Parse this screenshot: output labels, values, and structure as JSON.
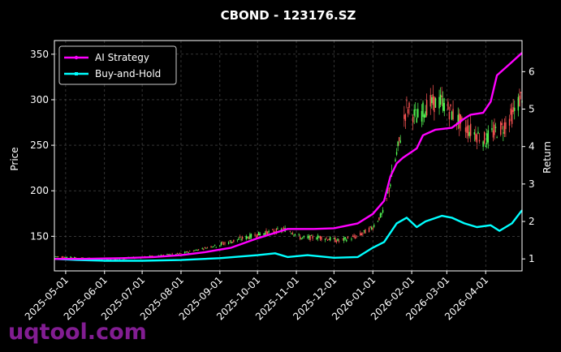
{
  "chart_data": {
    "type": "line",
    "title": "CBOND - 123176.SZ",
    "ylabel_left": "Price",
    "ylabel_right": "Return",
    "ylim_left": [
      112,
      365
    ],
    "ylim_right": [
      0.68,
      6.83
    ],
    "yticks_left": [
      150,
      200,
      250,
      300,
      350
    ],
    "yticks_right": [
      1,
      2,
      3,
      4,
      5,
      6
    ],
    "xlim": [
      "2025-04-22",
      "2026-04-30"
    ],
    "xticks": [
      "2025-05-01",
      "2025-06-01",
      "2025-07-01",
      "2025-08-01",
      "2025-09-01",
      "2025-10-01",
      "2025-11-01",
      "2025-12-01",
      "2026-01-01",
      "2026-02-01",
      "2026-03-01",
      "2026-04-01"
    ],
    "grid": true,
    "legend_position": "top-left",
    "series": [
      {
        "name": "AI Strategy",
        "color": "#ff00ff",
        "axis": "right",
        "points": [
          [
            "2025-04-22",
            1.0
          ],
          [
            "2025-05-15",
            1.0
          ],
          [
            "2025-06-15",
            1.02
          ],
          [
            "2025-07-10",
            1.05
          ],
          [
            "2025-08-01",
            1.1
          ],
          [
            "2025-08-20",
            1.18
          ],
          [
            "2025-09-10",
            1.3
          ],
          [
            "2025-10-01",
            1.55
          ],
          [
            "2025-10-25",
            1.8
          ],
          [
            "2025-11-15",
            1.8
          ],
          [
            "2025-12-01",
            1.82
          ],
          [
            "2025-12-20",
            1.95
          ],
          [
            "2026-01-01",
            2.2
          ],
          [
            "2026-01-10",
            2.55
          ],
          [
            "2026-01-15",
            3.2
          ],
          [
            "2026-01-20",
            3.55
          ],
          [
            "2026-01-25",
            3.7
          ],
          [
            "2026-02-05",
            3.95
          ],
          [
            "2026-02-10",
            4.3
          ],
          [
            "2026-02-20",
            4.45
          ],
          [
            "2026-03-05",
            4.5
          ],
          [
            "2026-03-15",
            4.75
          ],
          [
            "2026-03-20",
            4.85
          ],
          [
            "2026-03-30",
            4.9
          ],
          [
            "2026-04-05",
            5.2
          ],
          [
            "2026-04-10",
            5.9
          ],
          [
            "2026-04-20",
            6.2
          ],
          [
            "2026-04-30",
            6.5
          ]
        ]
      },
      {
        "name": "Buy-and-Hold",
        "color": "#00ffff",
        "axis": "right",
        "points": [
          [
            "2025-04-22",
            1.0
          ],
          [
            "2025-05-10",
            0.97
          ],
          [
            "2025-06-01",
            0.95
          ],
          [
            "2025-07-01",
            0.95
          ],
          [
            "2025-08-01",
            0.97
          ],
          [
            "2025-09-01",
            1.02
          ],
          [
            "2025-10-01",
            1.1
          ],
          [
            "2025-10-15",
            1.15
          ],
          [
            "2025-10-25",
            1.05
          ],
          [
            "2025-11-10",
            1.1
          ],
          [
            "2025-12-01",
            1.03
          ],
          [
            "2025-12-20",
            1.05
          ],
          [
            "2026-01-01",
            1.3
          ],
          [
            "2026-01-10",
            1.45
          ],
          [
            "2026-01-20",
            1.95
          ],
          [
            "2026-01-28",
            2.1
          ],
          [
            "2026-02-05",
            1.85
          ],
          [
            "2026-02-12",
            2.0
          ],
          [
            "2026-02-25",
            2.15
          ],
          [
            "2026-03-05",
            2.1
          ],
          [
            "2026-03-15",
            1.95
          ],
          [
            "2026-03-25",
            1.85
          ],
          [
            "2026-04-05",
            1.9
          ],
          [
            "2026-04-12",
            1.75
          ],
          [
            "2026-04-22",
            1.95
          ],
          [
            "2026-04-30",
            2.3
          ]
        ]
      },
      {
        "name": "Price candles",
        "type": "candlestick",
        "axis": "left",
        "up_color": "#55ff55",
        "down_color": "#ff5555",
        "close_path": [
          [
            "2025-04-22",
            128
          ],
          [
            "2025-06-01",
            124
          ],
          [
            "2025-07-01",
            127
          ],
          [
            "2025-08-01",
            131
          ],
          [
            "2025-09-01",
            141
          ],
          [
            "2025-10-01",
            152
          ],
          [
            "2025-10-25",
            158
          ],
          [
            "2025-11-05",
            148
          ],
          [
            "2025-11-20",
            149
          ],
          [
            "2025-12-05",
            145
          ],
          [
            "2025-12-20",
            150
          ],
          [
            "2026-01-01",
            160
          ],
          [
            "2026-01-10",
            178
          ],
          [
            "2026-01-20",
            240
          ],
          [
            "2026-01-28",
            292
          ],
          [
            "2026-02-05",
            280
          ],
          [
            "2026-02-15",
            295
          ],
          [
            "2026-02-25",
            298
          ],
          [
            "2026-03-05",
            285
          ],
          [
            "2026-03-15",
            270
          ],
          [
            "2026-03-25",
            262
          ],
          [
            "2026-04-01",
            255
          ],
          [
            "2026-04-05",
            262
          ],
          [
            "2026-04-15",
            270
          ],
          [
            "2026-04-22",
            283
          ],
          [
            "2026-04-30",
            305
          ]
        ]
      }
    ]
  },
  "watermark": "uqtool.com"
}
